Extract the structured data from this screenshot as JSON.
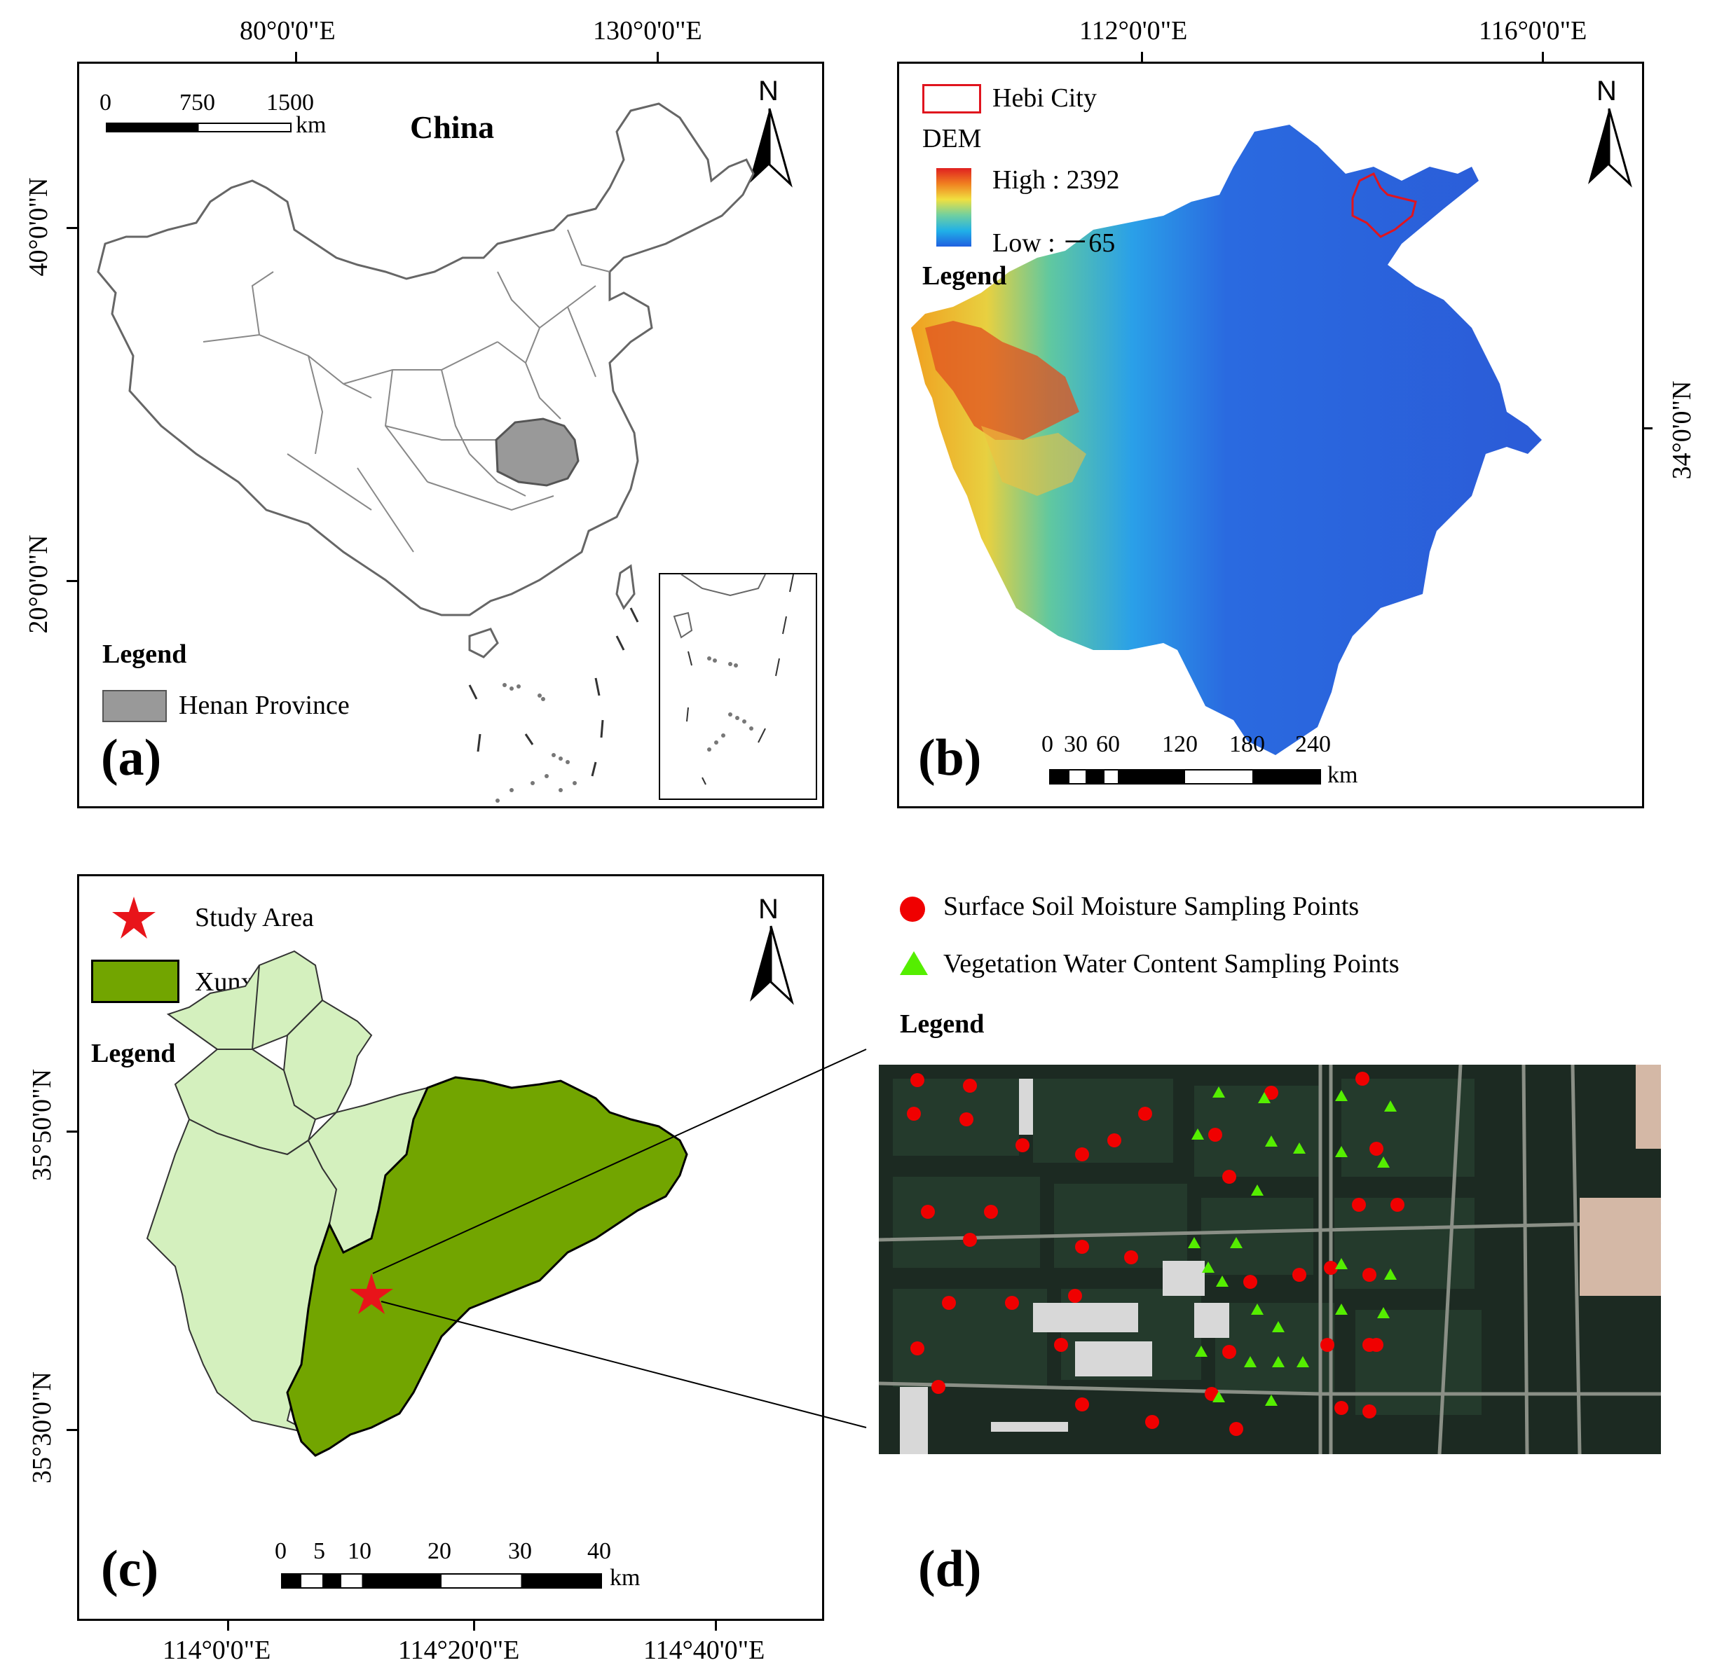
{
  "panel_a": {
    "letter": "(a)",
    "title": "China",
    "north": "N",
    "top_coords": [
      "80°0'0\"E",
      "130°0'0\"E"
    ],
    "left_coords": [
      "40°0'0\"N",
      "20°0'0\"N"
    ],
    "scale_labels": [
      "0",
      "750",
      "1500"
    ],
    "scale_unit": "km",
    "legend_title": "Legend",
    "legend_item": "Henan Province",
    "colors": {
      "henan": "#999999",
      "boundary": "#555555"
    }
  },
  "panel_b": {
    "letter": "(b)",
    "north": "N",
    "top_coords": [
      "112°0'0\"E",
      "116°0'0\"E"
    ],
    "right_coords": [
      "34°0'0\"N"
    ],
    "hebi_label": "Hebi City",
    "dem_label": "DEM",
    "high_label": "High : 2392",
    "low_label": "Low : －65",
    "legend_title": "Legend",
    "scale_labels": [
      "0",
      "30",
      "60",
      "120",
      "180",
      "240"
    ],
    "scale_unit": "km",
    "colors": {
      "hebi_outline": "#e0141e",
      "dem_high": "#d7191c",
      "dem_low": "#2b5bd7"
    }
  },
  "panel_c": {
    "letter": "(c)",
    "north": "N",
    "study_area_label": "Study Area",
    "xunxian_label": "Xunxian",
    "legend_title": "Legend",
    "left_coords": [
      "35°50'0\"N",
      "35°30'0\"N"
    ],
    "bottom_coords": [
      "114°0'0\"E",
      "114°20'0\"E",
      "114°40'0\"E"
    ],
    "scale_labels": [
      "0",
      "5",
      "10",
      "20",
      "30",
      "40"
    ],
    "scale_unit": "km",
    "colors": {
      "xunxian": "#72a500",
      "others": "#d4f0be",
      "star": "#e8141a"
    }
  },
  "panel_d": {
    "letter": "(d)",
    "soil_label": "Surface Soil Moisture Sampling Points",
    "veg_label": "Vegetation Water Content Sampling Points",
    "legend_title": "Legend",
    "colors": {
      "soil": "#f00000",
      "veg": "#55ee00"
    }
  }
}
